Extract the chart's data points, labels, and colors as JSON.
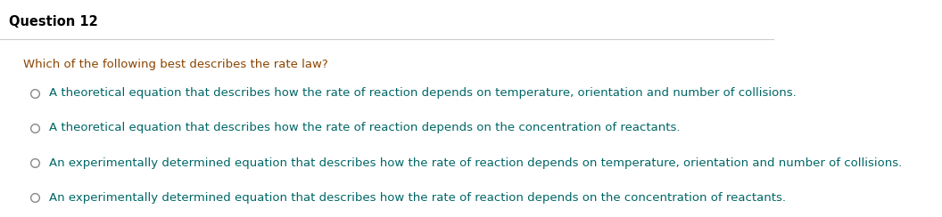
{
  "title": "Question 12",
  "title_color": "#000000",
  "title_fontsize": 10.5,
  "background_color": "#ffffff",
  "separator_color": "#cccccc",
  "question_text": "Which of the following best describes the rate law?",
  "question_color": "#8B4500",
  "question_fontsize": 9.5,
  "options": [
    "A theoretical equation that describes how the rate of reaction depends on temperature, orientation and number of collisions.",
    "A theoretical equation that describes how the rate of reaction depends on the concentration of reactants.",
    "An experimentally determined equation that describes how the rate of reaction depends on temperature, orientation and number of collisions.",
    "An experimentally determined equation that describes how the rate of reaction depends on the concentration of reactants."
  ],
  "option_color": "#006666",
  "option_fontsize": 9.5,
  "circle_color": "#888888"
}
